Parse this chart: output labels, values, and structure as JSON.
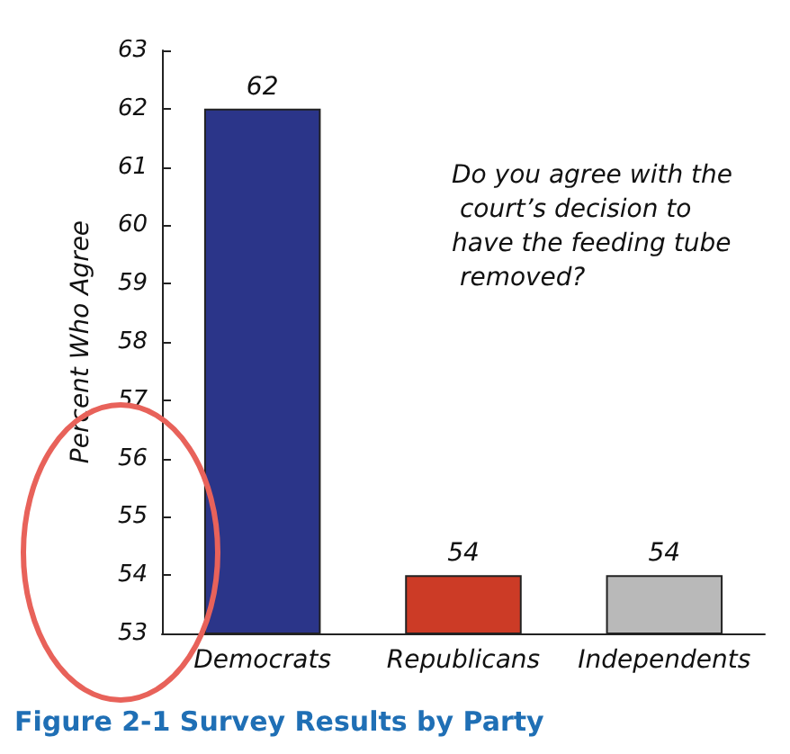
{
  "chart_data": {
    "type": "bar",
    "title": "Figure 2-1 Survey Results by Party",
    "ylabel": "Percent Who Agree",
    "categories": [
      "Democrats",
      "Republicans",
      "Independents"
    ],
    "values": [
      62,
      54,
      54
    ],
    "colors": [
      "#2b3589",
      "#cc3b26",
      "#b9b9b9"
    ],
    "ylim": [
      53,
      63
    ],
    "yticks": [
      53,
      54,
      55,
      56,
      57,
      58,
      59,
      60,
      61,
      62,
      63
    ],
    "grid": false,
    "data_labels": true,
    "annotations": [
      "Do you agree with the court’s decision to have the feeding tube removed?"
    ]
  }
}
